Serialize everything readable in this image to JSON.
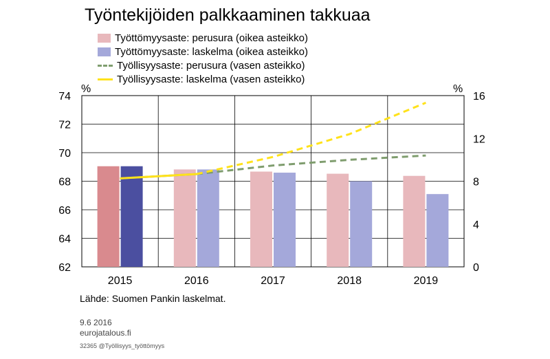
{
  "chart_data": {
    "type": "bar",
    "title": "Työntekijöiden palkkaaminen takkuaa",
    "categories": [
      "2015",
      "2016",
      "2017",
      "2018",
      "2019"
    ],
    "left_axis": {
      "unit": "%",
      "ylim": [
        62,
        74
      ],
      "ticks": [
        "62",
        "64",
        "66",
        "68",
        "70",
        "72",
        "74"
      ]
    },
    "right_axis": {
      "unit": "%",
      "ylim": [
        0,
        16
      ],
      "ticks": [
        "0",
        "4",
        "8",
        "12",
        "16"
      ]
    },
    "series": [
      {
        "name": "Työttömyysaste: perusura (oikea asteikko)",
        "kind": "bar",
        "axis": "right",
        "values": [
          9.4,
          9.1,
          8.9,
          8.7,
          8.5
        ],
        "color": "#E8B8BC",
        "highlight_color": "#D98A8E"
      },
      {
        "name": "Työttömyysaste: laskelma (oikea asteikko)",
        "kind": "bar",
        "axis": "right",
        "values": [
          9.4,
          9.1,
          8.8,
          8.0,
          6.8
        ],
        "color": "#A4A8DA",
        "highlight_color": "#4B4FA0"
      },
      {
        "name": "Työllisyysaste: perusura (vasen asteikko)",
        "kind": "line",
        "axis": "left",
        "dashed_from_index": 1,
        "values": [
          68.2,
          68.5,
          69.1,
          69.5,
          69.8
        ],
        "color": "#7F9D6E"
      },
      {
        "name": "Työllisyysaste: laskelma (vasen asteikko)",
        "kind": "line",
        "axis": "left",
        "dashed_from_index": 1,
        "values": [
          68.2,
          68.5,
          69.7,
          71.3,
          73.5
        ],
        "color": "#FFE21B"
      }
    ],
    "grid": true,
    "legend_position": "top-left"
  },
  "footer": {
    "source": "Lähde: Suomen Pankin laskelmat.",
    "date": "9.6 2016",
    "site": "eurojatalous.fi",
    "code": "32365 @Työllisyys_työttömyys"
  }
}
